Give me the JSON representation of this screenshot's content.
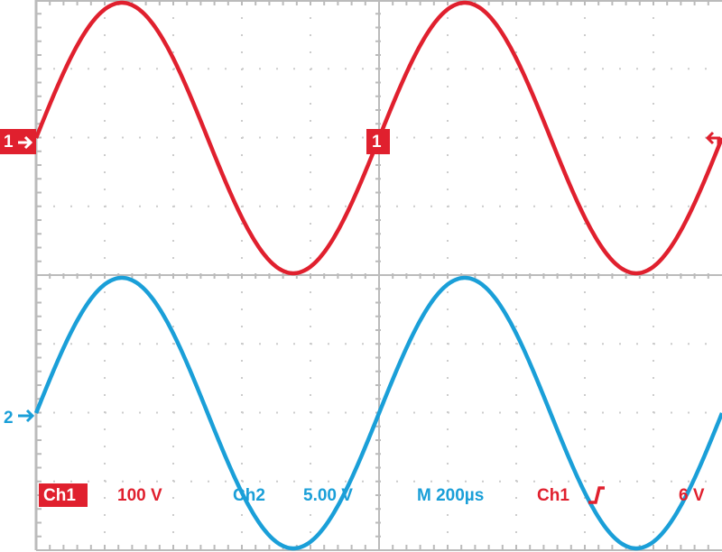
{
  "markers": {
    "ch1": "1",
    "ch2": "2",
    "trigger": "1"
  },
  "status": {
    "ch1_label": "Ch1",
    "ch1_scale": "100 V",
    "ch2_label": "Ch2",
    "ch2_scale": "5.00 V",
    "timebase": "M 200µs",
    "trigger_source": "Ch1",
    "trigger_level": "6 V"
  }
}
